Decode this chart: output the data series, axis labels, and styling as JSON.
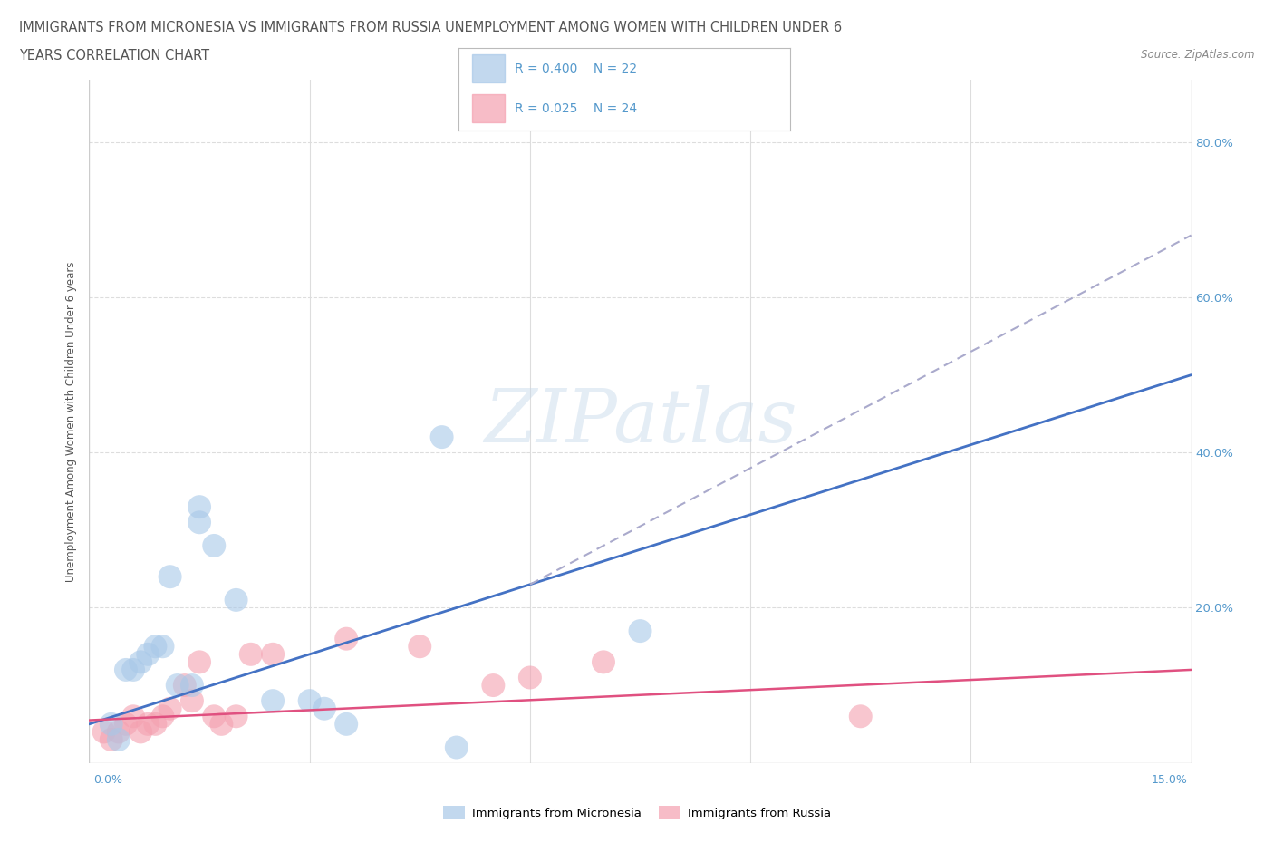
{
  "title_line1": "IMMIGRANTS FROM MICRONESIA VS IMMIGRANTS FROM RUSSIA UNEMPLOYMENT AMONG WOMEN WITH CHILDREN UNDER 6",
  "title_line2": "YEARS CORRELATION CHART",
  "source": "Source: ZipAtlas.com",
  "legend_micronesia": "Immigrants from Micronesia",
  "legend_russia": "Immigrants from Russia",
  "R_micronesia": "0.400",
  "N_micronesia": "22",
  "R_russia": "0.025",
  "N_russia": "24",
  "micronesia_color": "#a8c8e8",
  "russia_color": "#f4a0b0",
  "micronesia_line_color": "#4472c4",
  "russia_line_color": "#e05080",
  "micronesia_trend_dashed_color": "#aaaacc",
  "watermark": "ZIPatlas",
  "micronesia_scatter_x": [
    0.3,
    0.5,
    0.6,
    0.7,
    0.8,
    0.9,
    1.0,
    1.1,
    1.2,
    1.4,
    1.5,
    1.5,
    1.7,
    2.0,
    2.5,
    3.0,
    3.2,
    3.5,
    5.0,
    7.5,
    4.8,
    0.4
  ],
  "micronesia_scatter_y": [
    5,
    12,
    12,
    13,
    14,
    15,
    15,
    24,
    10,
    10,
    31,
    33,
    28,
    21,
    8,
    8,
    7,
    5,
    2,
    17,
    42,
    3
  ],
  "russia_scatter_x": [
    0.2,
    0.3,
    0.4,
    0.5,
    0.6,
    0.7,
    0.8,
    0.9,
    1.0,
    1.1,
    1.3,
    1.4,
    1.5,
    1.7,
    1.8,
    2.0,
    2.2,
    2.5,
    3.5,
    4.5,
    5.5,
    6.0,
    7.0,
    10.5
  ],
  "russia_scatter_y": [
    4,
    3,
    4,
    5,
    6,
    4,
    5,
    5,
    6,
    7,
    10,
    8,
    13,
    6,
    5,
    6,
    14,
    14,
    16,
    15,
    10,
    11,
    13,
    6
  ],
  "xmin": 0.0,
  "xmax": 15.0,
  "ymin": 0.0,
  "ymax": 88.0,
  "micronesia_trend_x0": 0.0,
  "micronesia_trend_x1": 15.0,
  "micronesia_trend_y0": 5.0,
  "micronesia_trend_y1": 50.0,
  "micronesia_dashed_x0": 6.0,
  "micronesia_dashed_x1": 15.0,
  "micronesia_dashed_y0": 23.0,
  "micronesia_dashed_y1": 68.0,
  "russia_trend_x0": 0.0,
  "russia_trend_x1": 15.0,
  "russia_trend_y0": 5.5,
  "russia_trend_y1": 12.0,
  "ytick_vals": [
    0,
    20,
    40,
    60,
    80
  ],
  "right_yticks": [
    [
      80,
      "80.0%"
    ],
    [
      60,
      "60.0%"
    ],
    [
      40,
      "40.0%"
    ],
    [
      20,
      "20.0%"
    ]
  ],
  "background_color": "#ffffff",
  "title_color": "#555555",
  "grid_color": "#dddddd",
  "axis_color": "#cccccc",
  "right_label_color": "#5599cc"
}
